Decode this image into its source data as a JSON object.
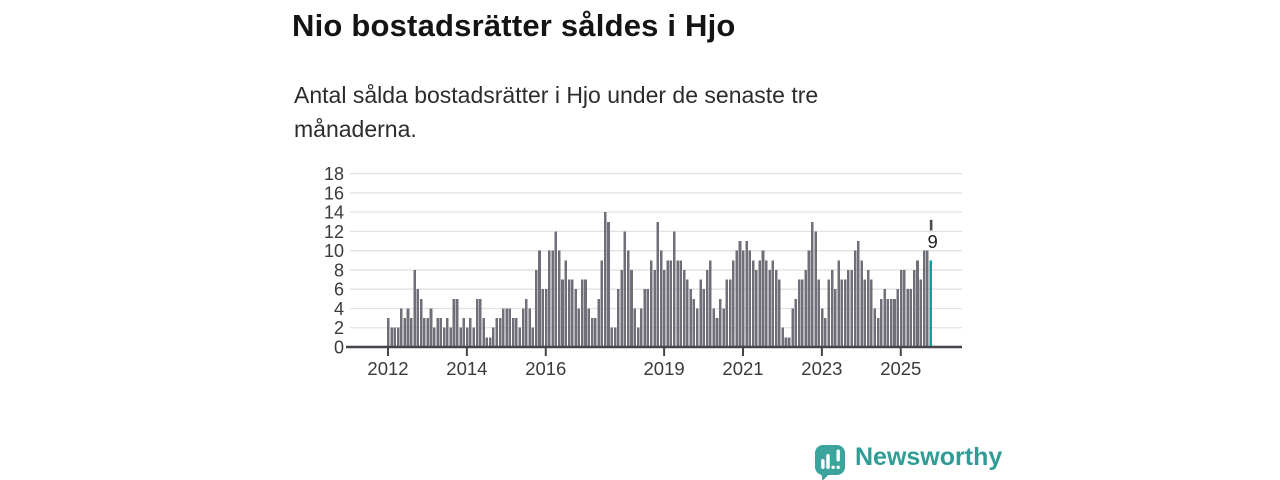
{
  "title": "Nio bostadsrätter såldes i Hjo",
  "subtitle": "Antal sålda bostadsrätter i Hjo under de senaste tre månaderna.",
  "chart_data": {
    "type": "bar",
    "title": "Nio bostadsrätter såldes i Hjo",
    "xlabel": "",
    "ylabel": "",
    "x_start": "2012-01",
    "x_end": "2025-10",
    "frequency": "monthly",
    "ylim": [
      0,
      18
    ],
    "yticks": [
      0,
      2,
      4,
      6,
      8,
      10,
      12,
      14,
      16,
      18
    ],
    "year_ticks": [
      2012,
      2014,
      2016,
      2019,
      2021,
      2023,
      2025
    ],
    "grid": true,
    "legend": "none",
    "bar_color": "#706f79",
    "highlight_color": "#00a29b",
    "axis_color": "#45454b",
    "grid_color": "#e2e2e2",
    "tick_label_color": "#3a3a3a",
    "last_point": {
      "label": "9",
      "value": 9,
      "pace_marker_low": 12.1,
      "pace_marker_high": 13.2
    },
    "values": [
      3,
      2,
      2,
      2,
      4,
      3,
      4,
      3,
      8,
      6,
      5,
      3,
      3,
      4,
      2,
      3,
      3,
      2,
      3,
      2,
      5,
      5,
      2,
      3,
      2,
      3,
      2,
      5,
      5,
      3,
      1,
      1,
      2,
      3,
      3,
      4,
      4,
      4,
      3,
      3,
      2,
      4,
      5,
      4,
      2,
      8,
      10,
      6,
      6,
      10,
      10,
      12,
      10,
      7,
      9,
      7,
      7,
      6,
      4,
      7,
      7,
      4,
      3,
      3,
      5,
      9,
      14,
      13,
      2,
      2,
      6,
      8,
      12,
      10,
      8,
      4,
      2,
      4,
      6,
      6,
      9,
      8,
      13,
      10,
      8,
      9,
      9,
      12,
      9,
      9,
      8,
      7,
      6,
      5,
      4,
      7,
      6,
      8,
      9,
      4,
      3,
      5,
      4,
      7,
      7,
      9,
      10,
      11,
      10,
      11,
      10,
      9,
      8,
      9,
      10,
      9,
      8,
      9,
      8,
      7,
      2,
      1,
      1,
      4,
      5,
      7,
      7,
      8,
      10,
      13,
      12,
      7,
      4,
      3,
      7,
      8,
      6,
      9,
      7,
      7,
      8,
      8,
      10,
      11,
      9,
      7,
      8,
      7,
      4,
      3,
      5,
      6,
      5,
      5,
      5,
      6,
      8,
      8,
      6,
      6,
      8,
      9,
      7,
      10,
      10,
      9
    ]
  },
  "branding": {
    "name": "Newsworthy",
    "text_color": "#2f9d96",
    "icon_color": "#3aa49d",
    "icon": "bar-chart-speech-bubble"
  }
}
